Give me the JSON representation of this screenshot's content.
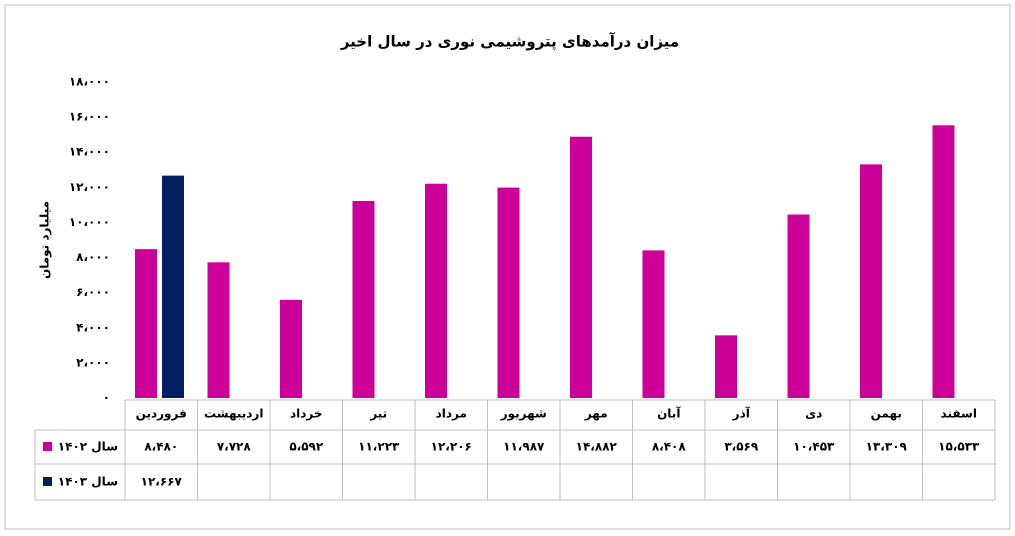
{
  "chart_data": {
    "type": "bar",
    "title": "میزان درآمدهای پتروشیمی نوری در سال اخیر",
    "y_label": "میلیارد تومان",
    "categories": [
      "فروردین",
      "اردیبهشت",
      "خرداد",
      "تیر",
      "مرداد",
      "شهریور",
      "مهر",
      "آبان",
      "آذر",
      "دی",
      "بهمن",
      "اسفند"
    ],
    "series": [
      {
        "name": "سال ۱۴۰۲",
        "color": "#cc0099",
        "values": [
          8480,
          7728,
          5592,
          11223,
          12206,
          11987,
          14882,
          8408,
          3569,
          10453,
          13309,
          15533
        ],
        "value_labels": [
          "۸،۴۸۰",
          "۷،۷۲۸",
          "۵،۵۹۲",
          "۱۱،۲۲۳",
          "۱۲،۲۰۶",
          "۱۱،۹۸۷",
          "۱۴،۸۸۲",
          "۸،۴۰۸",
          "۳،۵۶۹",
          "۱۰،۴۵۳",
          "۱۳،۳۰۹",
          "۱۵،۵۳۳"
        ]
      },
      {
        "name": "سال ۱۴۰۳",
        "color": "#002060",
        "values": [
          12667,
          null,
          null,
          null,
          null,
          null,
          null,
          null,
          null,
          null,
          null,
          null
        ],
        "value_labels": [
          "۱۲،۶۶۷",
          null,
          null,
          null,
          null,
          null,
          null,
          null,
          null,
          null,
          null,
          null
        ]
      }
    ],
    "ylim": [
      0,
      18000
    ],
    "yticks": [
      {
        "value": 0,
        "label": "۰"
      },
      {
        "value": 2000,
        "label": "۲،۰۰۰"
      },
      {
        "value": 4000,
        "label": "۴،۰۰۰"
      },
      {
        "value": 6000,
        "label": "۶،۰۰۰"
      },
      {
        "value": 8000,
        "label": "۸،۰۰۰"
      },
      {
        "value": 10000,
        "label": "۱۰،۰۰۰"
      },
      {
        "value": 12000,
        "label": "۱۲،۰۰۰"
      },
      {
        "value": 14000,
        "label": "۱۴،۰۰۰"
      },
      {
        "value": 16000,
        "label": "۱۶،۰۰۰"
      },
      {
        "value": 18000,
        "label": "۱۸،۰۰۰"
      }
    ],
    "grid": false
  }
}
